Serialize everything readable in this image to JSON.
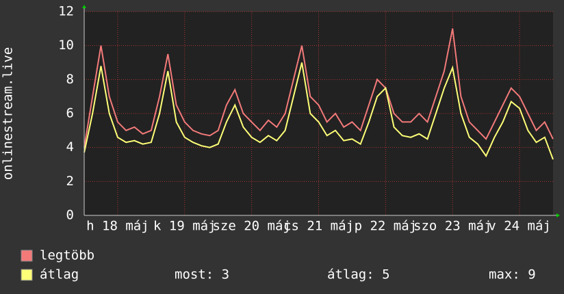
{
  "chart_data": {
    "type": "line",
    "ylabel": "onlinestream.live",
    "x": [
      0,
      3,
      6,
      9,
      12,
      15,
      18,
      21,
      24,
      27,
      30,
      33,
      36,
      39,
      42,
      45,
      48,
      51,
      54,
      57,
      60,
      63,
      66,
      69,
      72,
      75,
      78,
      81,
      84,
      87,
      90,
      93,
      96,
      99,
      102,
      105,
      108,
      111,
      114,
      117,
      120,
      123,
      126,
      129,
      132,
      135,
      138,
      141,
      144,
      147,
      150,
      153,
      156,
      159,
      162,
      165,
      168
    ],
    "xlim": [
      0,
      168
    ],
    "xticks": [
      {
        "value": 12,
        "label": "h 18 máj"
      },
      {
        "value": 36,
        "label": "k 19 máj"
      },
      {
        "value": 60,
        "label": "sze 20 máj"
      },
      {
        "value": 84,
        "label": "cs 21 máj"
      },
      {
        "value": 108,
        "label": "p 22 máj"
      },
      {
        "value": 132,
        "label": "szo 23 máj"
      },
      {
        "value": 156,
        "label": "v 24 máj"
      }
    ],
    "ylim": [
      0,
      12
    ],
    "yticks": [
      0,
      2,
      4,
      6,
      8,
      10,
      12
    ],
    "grid": true,
    "series": [
      {
        "name": "legtöbb",
        "color": "#f47a7a",
        "values": [
          4,
          7,
          10,
          7,
          5.5,
          5,
          5.2,
          4.8,
          5,
          7,
          9.5,
          6.5,
          5.5,
          5,
          4.8,
          4.7,
          5,
          6.5,
          7.4,
          6,
          5.5,
          5,
          5.6,
          5.2,
          6,
          8,
          10,
          7,
          6.5,
          5.5,
          6,
          5.2,
          5.5,
          5,
          6.5,
          8,
          7.5,
          6,
          5.5,
          5.5,
          6,
          5.5,
          7,
          8.5,
          11,
          7,
          5.5,
          5,
          4.5,
          5.5,
          6.5,
          7.5,
          7,
          6,
          5,
          5.5,
          4.5
        ]
      },
      {
        "name": "átlag",
        "color": "#ffff78",
        "values": [
          3.7,
          6,
          8.8,
          6,
          4.6,
          4.3,
          4.4,
          4.2,
          4.3,
          6,
          8.5,
          5.5,
          4.6,
          4.3,
          4.1,
          4,
          4.2,
          5.5,
          6.5,
          5.2,
          4.6,
          4.3,
          4.7,
          4.4,
          5,
          7,
          9,
          6,
          5.5,
          4.7,
          5,
          4.4,
          4.5,
          4.2,
          5.5,
          7,
          7.5,
          5.2,
          4.7,
          4.6,
          4.8,
          4.5,
          6,
          7.5,
          8.7,
          6,
          4.6,
          4.2,
          3.5,
          4.6,
          5.5,
          6.7,
          6.3,
          5,
          4.3,
          4.6,
          3.3
        ]
      }
    ],
    "stats": [
      "most: 3",
      "átlag: 5",
      "max: 9"
    ]
  }
}
